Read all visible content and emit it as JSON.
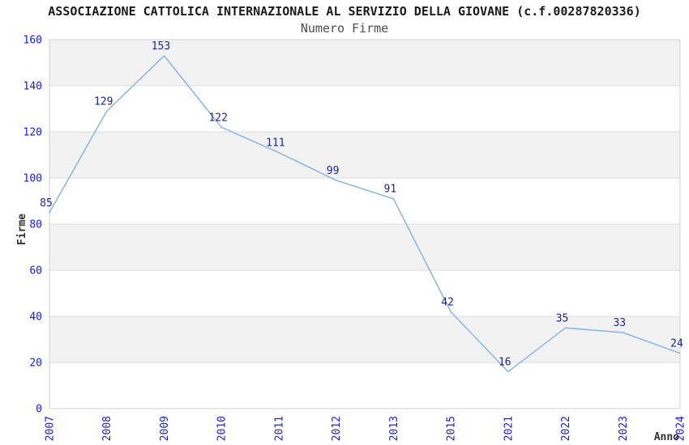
{
  "header": {
    "title": "ASSOCIAZIONE CATTOLICA INTERNAZIONALE AL SERVIZIO DELLA GIOVANE (c.f.00287820336)",
    "subtitle": "Numero Firme"
  },
  "chart_data": {
    "type": "line",
    "title": "ASSOCIAZIONE CATTOLICA INTERNAZIONALE AL SERVIZIO DELLA GIOVANE (c.f.00287820336)",
    "subtitle": "Numero Firme",
    "xlabel": "Anno",
    "ylabel": "Firme",
    "x": [
      "2007",
      "2008",
      "2009",
      "2010",
      "2011",
      "2012",
      "2013",
      "2015",
      "2021",
      "2022",
      "2023",
      "2024"
    ],
    "series": [
      {
        "name": "Numero Firme",
        "values": [
          85,
          129,
          153,
          122,
          111,
          99,
          91,
          42,
          16,
          35,
          33,
          24
        ]
      }
    ],
    "ylim": [
      0,
      160
    ],
    "ytick_step": 20,
    "yticks": [
      0,
      20,
      40,
      60,
      80,
      100,
      120,
      140,
      160
    ],
    "grid": "alternating-horizontal-bands",
    "legend": "none",
    "data_labels_visible": true,
    "colors": {
      "line": "#82b1e3",
      "tick_label": "#1a1ae0",
      "data_label": "#20248c",
      "band_fill": "#f2f2f2",
      "grid_line": "#dcdcdc",
      "plot_border": "#d0d0d0",
      "axis_title": "#333333",
      "background": "#ffffff"
    }
  }
}
